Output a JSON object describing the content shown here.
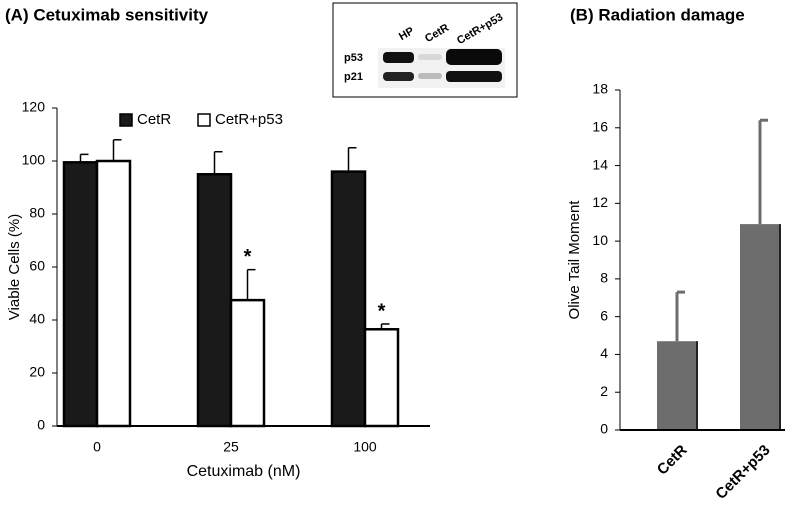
{
  "chart_data": [
    {
      "type": "bar",
      "title": "(A) Cetuximab sensitivity",
      "xlabel": "Cetuximab (nM)",
      "ylabel": "Viable Cells (%)",
      "categories": [
        "0",
        "25",
        "100"
      ],
      "series": [
        {
          "name": "CetR",
          "color": "#1a1a1a",
          "values": [
            99.5,
            95,
            96
          ],
          "errors": [
            3,
            8.5,
            9
          ]
        },
        {
          "name": "CetR+p53",
          "color": "#ffffff",
          "values": [
            100,
            47.5,
            36.5
          ],
          "errors": [
            8,
            11.5,
            2
          ]
        }
      ],
      "annotations": [
        {
          "text": "*",
          "category": "25",
          "series": "CetR+p53"
        },
        {
          "text": "*",
          "category": "100",
          "series": "CetR+p53"
        }
      ],
      "ylim": [
        0,
        120
      ],
      "yticks": [
        0,
        20,
        40,
        60,
        80,
        100,
        120
      ],
      "legend": "top"
    },
    {
      "type": "bar",
      "title": "(B) Radiation damage",
      "ylabel": "Olive Tail Moment",
      "categories": [
        "CetR",
        "CetR+p53"
      ],
      "series": [
        {
          "color": "#6d6d6d",
          "values": [
            4.7,
            10.9
          ],
          "errors": [
            2.6,
            5.5
          ]
        }
      ],
      "ylim": [
        0,
        18
      ],
      "yticks": [
        0,
        2,
        4,
        6,
        8,
        10,
        12,
        14,
        16,
        18
      ]
    }
  ],
  "inset": {
    "lanes": [
      "HP",
      "CetR",
      "CetR+p53"
    ],
    "rows": [
      "p53",
      "p21"
    ]
  }
}
